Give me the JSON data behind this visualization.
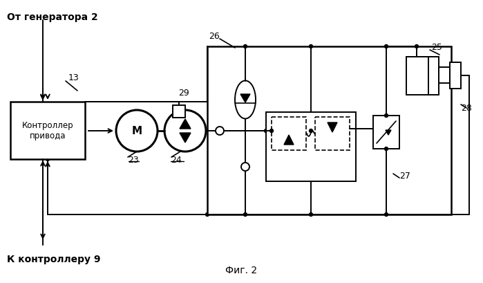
{
  "title": "Фиг. 2",
  "top_label": "От генератора 2",
  "bottom_label": "К контроллеру 9",
  "label_13": "13",
  "label_23": "23",
  "label_24": "24",
  "label_25": "25",
  "label_26": "26",
  "label_27": "27",
  "label_28": "28",
  "label_29": "29",
  "controller_text": "Контроллер\nпривода",
  "motor_label": "М",
  "bg_color": "#ffffff",
  "line_color": "#000000",
  "figsize": [
    6.99,
    4.1
  ],
  "dpi": 100
}
